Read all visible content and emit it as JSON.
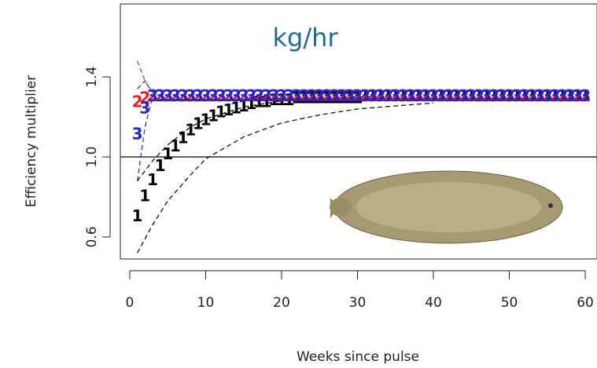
{
  "chart_data": {
    "type": "line",
    "annotation": "kg/hr",
    "xlabel": "Weeks since pulse",
    "ylabel": "Efficiency multiplier",
    "xlim": [
      -1.24,
      61.55
    ],
    "xticks": [
      0,
      10,
      20,
      30,
      40,
      50,
      60
    ],
    "ylim": [
      0.49,
      1.765
    ],
    "yticks": [
      0.6,
      {
        "value": 1,
        "label": "1.0"
      },
      1.4
    ],
    "hline": 1,
    "x": [
      1,
      2,
      3,
      4,
      5,
      6,
      7,
      8,
      9,
      10,
      11,
      12,
      13,
      14,
      15,
      16,
      17,
      18,
      19,
      20,
      21,
      22,
      23,
      24,
      25,
      26,
      27,
      28,
      29,
      30,
      31,
      32,
      33,
      34,
      35,
      36,
      37,
      38,
      39,
      40,
      41,
      42,
      43,
      44,
      45,
      46,
      47,
      48,
      49,
      50,
      51,
      52,
      53,
      54,
      55,
      56,
      57,
      58,
      59,
      60
    ],
    "series": [
      {
        "marker": "1",
        "color": "#000000",
        "values": [
          0.7,
          0.8,
          0.88,
          0.95,
          1.01,
          1.05,
          1.09,
          1.13,
          1.16,
          1.18,
          1.2,
          1.22,
          1.23,
          1.24,
          1.25,
          1.26,
          1.27,
          1.27,
          1.28,
          1.28,
          1.28,
          1.29,
          1.29,
          1.29,
          1.29,
          1.29,
          1.29,
          1.29,
          1.29,
          1.29,
          1.3,
          1.3,
          1.3,
          1.3,
          1.3,
          1.3,
          1.3,
          1.3,
          1.3,
          1.3,
          1.3,
          1.3,
          1.3,
          1.3,
          1.3,
          1.3,
          1.3,
          1.3,
          1.3,
          1.3,
          1.3,
          1.3,
          1.3,
          1.3,
          1.3,
          1.3,
          1.3,
          1.3,
          1.3,
          1.3
        ]
      },
      {
        "marker": "2",
        "color": "#e8202a",
        "values": [
          1.27,
          1.29,
          1.3,
          1.3,
          1.3,
          1.3,
          1.3,
          1.3,
          1.3,
          1.3,
          1.3,
          1.3,
          1.3,
          1.3,
          1.3,
          1.3,
          1.3,
          1.3,
          1.3,
          1.3,
          1.3,
          1.3,
          1.3,
          1.3,
          1.3,
          1.3,
          1.3,
          1.3,
          1.3,
          1.3,
          1.3,
          1.3,
          1.3,
          1.3,
          1.3,
          1.3,
          1.3,
          1.3,
          1.3,
          1.3,
          1.3,
          1.3,
          1.3,
          1.3,
          1.3,
          1.3,
          1.3,
          1.3,
          1.3,
          1.3,
          1.3,
          1.3,
          1.3,
          1.3,
          1.3,
          1.3,
          1.3,
          1.3,
          1.3,
          1.3
        ]
      },
      {
        "marker": "3",
        "color": "#2424c8",
        "values": [
          1.11,
          1.24,
          1.3,
          1.3,
          1.3,
          1.3,
          1.3,
          1.3,
          1.3,
          1.3,
          1.3,
          1.3,
          1.3,
          1.3,
          1.3,
          1.3,
          1.3,
          1.3,
          1.3,
          1.3,
          1.3,
          1.3,
          1.3,
          1.3,
          1.3,
          1.3,
          1.3,
          1.3,
          1.3,
          1.3,
          1.3,
          1.3,
          1.3,
          1.3,
          1.3,
          1.3,
          1.3,
          1.3,
          1.3,
          1.3,
          1.3,
          1.3,
          1.3,
          1.3,
          1.3,
          1.3,
          1.3,
          1.3,
          1.3,
          1.3,
          1.3,
          1.3,
          1.3,
          1.3,
          1.3,
          1.3,
          1.3,
          1.3,
          1.3,
          1.3
        ]
      }
    ],
    "bands": [
      {
        "color": "#000000",
        "x": [
          1,
          3,
          5,
          8,
          10,
          15,
          20,
          25,
          30,
          40
        ],
        "values": [
          0.88,
          0.98,
          1.06,
          1.15,
          1.19,
          1.25,
          1.28,
          1.29,
          1.3,
          1.3
        ]
      },
      {
        "color": "#000000",
        "x": [
          1,
          3,
          5,
          8,
          10,
          15,
          20,
          25,
          30,
          40
        ],
        "values": [
          0.52,
          0.66,
          0.78,
          0.91,
          0.99,
          1.1,
          1.17,
          1.21,
          1.24,
          1.27
        ]
      },
      {
        "color": "#e8202a",
        "x": [
          1,
          2,
          3
        ],
        "values": [
          1.48,
          1.38,
          1.32
        ]
      },
      {
        "color": "#2424c8",
        "x": [
          1,
          2,
          3
        ],
        "values": [
          0.88,
          1.15,
          1.3
        ]
      },
      {
        "color": "#2424c8",
        "x": [
          1,
          2,
          3
        ],
        "values": [
          1.34,
          1.38,
          1.32
        ]
      }
    ]
  }
}
